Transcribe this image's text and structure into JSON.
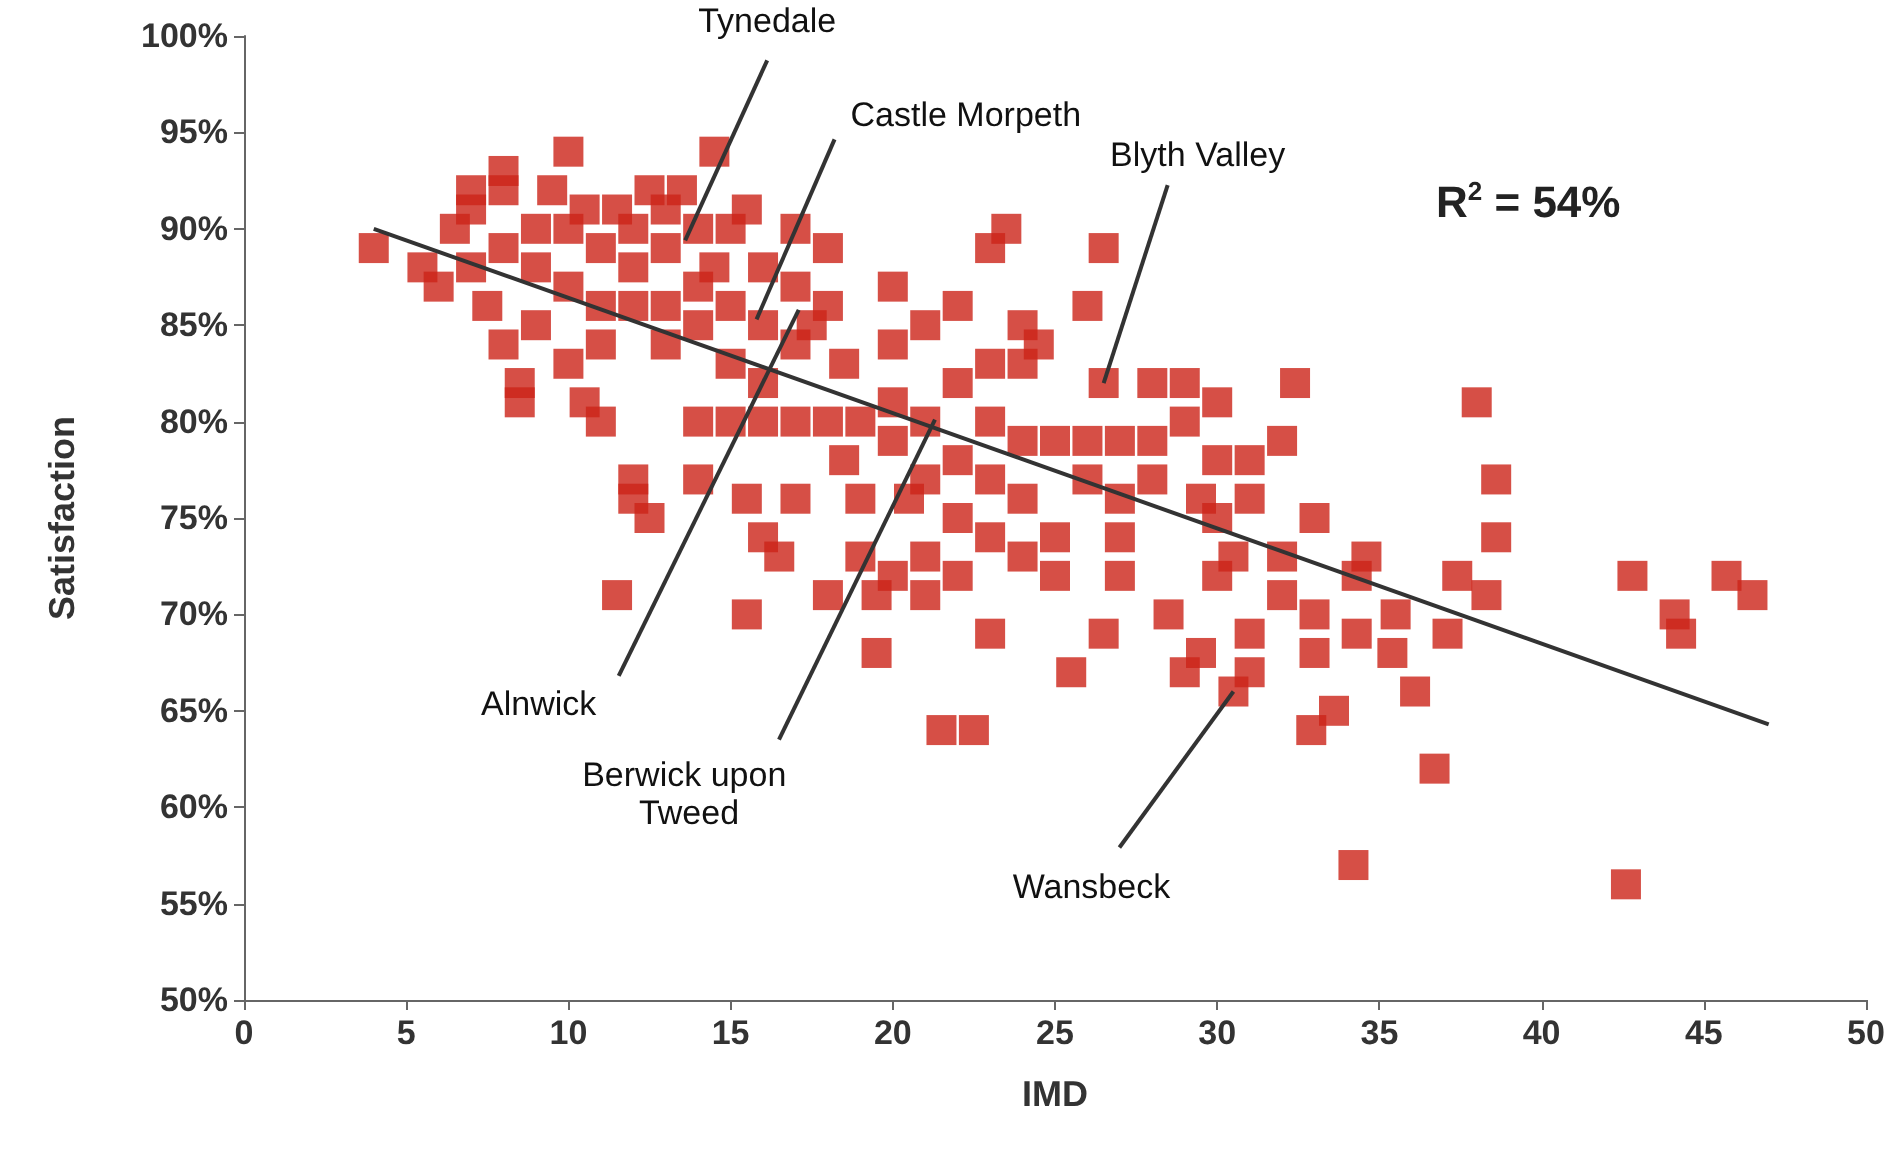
{
  "chart_data": {
    "type": "scatter",
    "xlabel": "IMD",
    "ylabel": "Satisfaction",
    "grid": false,
    "xlim": [
      0,
      50
    ],
    "xticks": [
      0,
      5,
      10,
      15,
      20,
      25,
      30,
      35,
      40,
      45,
      50
    ],
    "ylim": [
      50,
      100
    ],
    "yticks": [
      {
        "value": 50,
        "label": "50%"
      },
      {
        "value": 55,
        "label": "55%"
      },
      {
        "value": 60,
        "label": "60%"
      },
      {
        "value": 65,
        "label": "65%"
      },
      {
        "value": 70,
        "label": "70%"
      },
      {
        "value": 75,
        "label": "75%"
      },
      {
        "value": 80,
        "label": "80%"
      },
      {
        "value": 85,
        "label": "85%"
      },
      {
        "value": 90,
        "label": "90%"
      },
      {
        "value": 95,
        "label": "95%"
      },
      {
        "value": 100,
        "label": "100%"
      }
    ],
    "series": [
      {
        "marker": "square",
        "color": "#cc2318",
        "x": [
          4,
          5.5,
          6,
          6.5,
          7,
          7,
          7,
          7.5,
          8,
          8,
          8,
          8,
          8.5,
          8.5,
          9,
          9,
          9,
          9.5,
          10,
          10,
          10,
          10,
          10.5,
          10.5,
          11,
          11,
          11,
          11,
          11.5,
          12,
          12,
          12,
          12.5,
          12,
          12,
          12.5,
          11.5,
          13,
          13,
          13,
          13,
          13.5,
          14,
          14,
          14,
          14,
          14.5,
          14.5,
          14,
          15,
          15,
          15,
          15,
          15.5,
          15.5,
          16,
          16,
          16,
          16,
          16,
          15.5,
          16.5,
          17,
          17,
          17,
          17,
          17,
          17.5,
          18,
          18,
          18,
          18,
          18.5,
          18.5,
          19,
          19,
          19,
          19.5,
          19.5,
          20,
          20,
          20,
          20,
          20,
          20.5,
          21,
          21,
          21,
          21,
          21,
          21.5,
          22,
          22,
          22,
          22,
          22,
          22.5,
          23,
          23,
          23,
          23,
          23,
          23,
          23.5,
          24,
          24,
          24,
          24,
          24,
          24.5,
          25,
          25,
          25,
          25.5,
          26,
          26,
          26,
          26.5,
          26.5,
          26.5,
          27,
          27,
          27,
          27,
          28,
          28,
          28,
          28.5,
          29,
          29,
          29,
          29.5,
          29.5,
          30,
          30,
          30,
          30,
          30.5,
          30.5,
          31,
          31,
          31,
          31,
          32,
          32,
          32,
          32.4,
          33,
          33,
          33,
          33.6,
          32.9,
          34.3,
          34.3,
          34.6,
          35.5,
          35.4,
          34.2,
          36.1,
          36.7,
          37.4,
          38.3,
          37.1,
          38,
          38.6,
          38.6,
          42.8,
          45.7,
          46.5,
          44.1,
          44.3,
          42.6
        ],
        "values": [
          89,
          88,
          87,
          90,
          92,
          91,
          88,
          86,
          93,
          92,
          89,
          84,
          82,
          81,
          90,
          88,
          85,
          92,
          94,
          90,
          87,
          83,
          91,
          81,
          89,
          86,
          84,
          80,
          91,
          90,
          88,
          86,
          92,
          77,
          76,
          75,
          71,
          91,
          89,
          86,
          84,
          92,
          90,
          87,
          85,
          80,
          94,
          88,
          77,
          90,
          86,
          83,
          80,
          91,
          76,
          88,
          85,
          82,
          80,
          74,
          70,
          73,
          90,
          87,
          84,
          80,
          76,
          85,
          89,
          86,
          80,
          71,
          83,
          78,
          80,
          76,
          73,
          68,
          71,
          87,
          84,
          81,
          79,
          72,
          76,
          85,
          80,
          77,
          73,
          71,
          64,
          86,
          82,
          78,
          75,
          72,
          64,
          83,
          80,
          77,
          74,
          69,
          89,
          90,
          85,
          83,
          79,
          76,
          73,
          84,
          79,
          74,
          72,
          67,
          86,
          79,
          77,
          89,
          82,
          69,
          79,
          76,
          74,
          72,
          82,
          79,
          77,
          70,
          82,
          80,
          67,
          68,
          76,
          81,
          78,
          75,
          72,
          73,
          66,
          78,
          76,
          69,
          67,
          79,
          73,
          71,
          82,
          75,
          70,
          68,
          65,
          64,
          69,
          72,
          73,
          70,
          68,
          57,
          66,
          62,
          72,
          71,
          69,
          81,
          77,
          74,
          72,
          72,
          71,
          70,
          69,
          56
        ]
      },
      {
        "type": "line",
        "marker": "none",
        "color": "#333333",
        "x": [
          4,
          47
        ],
        "values": [
          90,
          64.3
        ]
      }
    ],
    "annotations": [
      {
        "text": "Tynedale",
        "x": 13.6,
        "y": 89.4
      },
      {
        "text": "Castle Morpeth",
        "x": 15.8,
        "y": 85.3
      },
      {
        "text": "Blyth Valley",
        "x": 26.5,
        "y": 82
      },
      {
        "text": "Alnwick",
        "x": 17.1,
        "y": 85.8
      },
      {
        "text": "Berwick upon Tweed",
        "x": 21.3,
        "y": 80.1
      },
      {
        "text": "Wansbeck",
        "x": 30.5,
        "y": 66
      },
      "R$^{2}$ = 54%"
    ]
  }
}
